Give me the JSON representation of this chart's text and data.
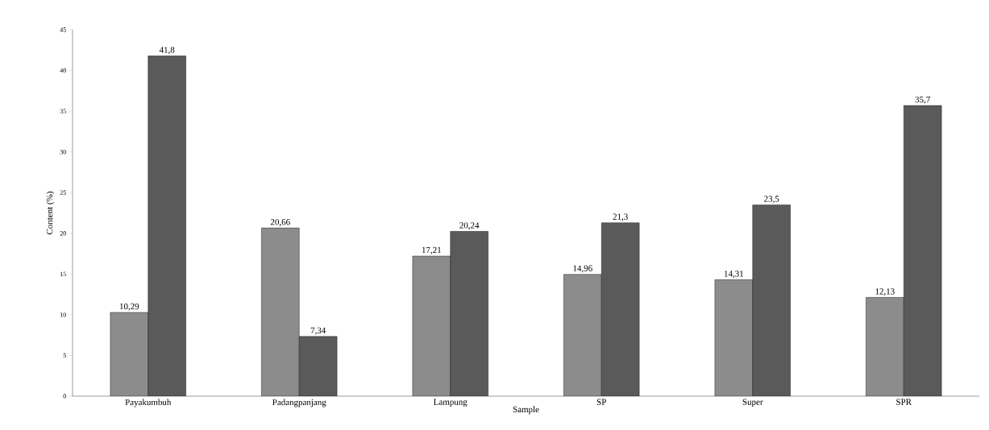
{
  "chart_data": {
    "type": "bar",
    "xlabel": "Sample",
    "ylabel": "Content (%)",
    "categories": [
      "Payakumbuh",
      "Padangpanjang",
      "Lampung",
      "SP",
      "Super",
      "SPR"
    ],
    "series": [
      {
        "color": "#8c8c8c",
        "values": [
          10.29,
          20.66,
          17.21,
          14.96,
          14.31,
          12.13
        ],
        "value_labels": [
          "10,29",
          "20,66",
          "17,21",
          "14,96",
          "14,31",
          "12,13"
        ]
      },
      {
        "color": "#5a5a5a",
        "values": [
          41.8,
          7.34,
          20.24,
          21.3,
          23.5,
          35.7
        ],
        "value_labels": [
          "41,8",
          "7,34",
          "20,24",
          "21,3",
          "23,5",
          "35,7"
        ]
      }
    ],
    "ylim": [
      0,
      45
    ],
    "yticks": [
      0,
      5,
      10,
      15,
      20,
      25,
      30,
      35,
      40,
      45
    ]
  }
}
